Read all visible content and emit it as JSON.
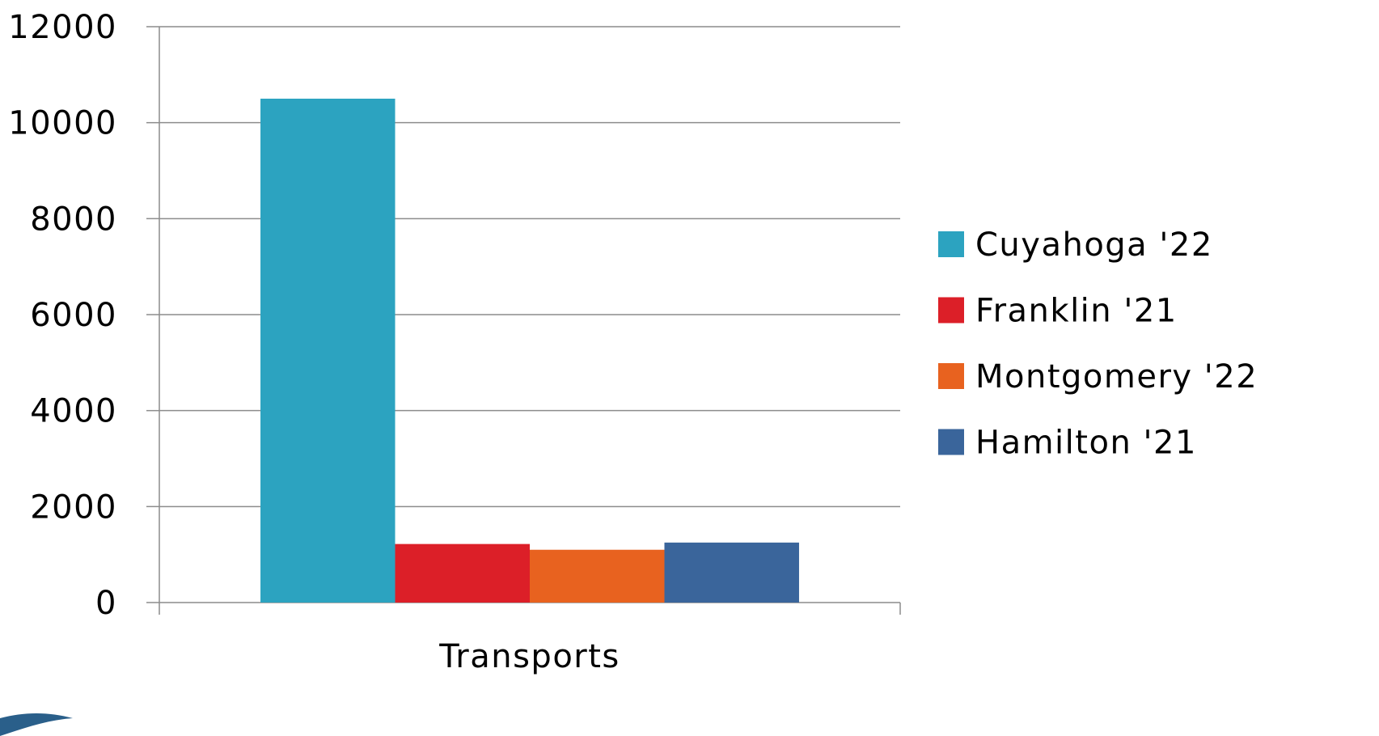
{
  "chart_data": {
    "type": "bar",
    "categories": [
      "Transports"
    ],
    "series": [
      {
        "name": "Cuyahoga '22",
        "values": [
          10500
        ],
        "color": "#2ca3c0"
      },
      {
        "name": "Franklin '21",
        "values": [
          1220
        ],
        "color": "#dc1f28"
      },
      {
        "name": "Montgomery '22",
        "values": [
          1100
        ],
        "color": "#e8621f"
      },
      {
        "name": "Hamilton '21",
        "values": [
          1250
        ],
        "color": "#3a659b"
      }
    ],
    "ylim": [
      0,
      12000
    ],
    "yticks": [
      0,
      2000,
      4000,
      6000,
      8000,
      10000,
      12000
    ],
    "ytick_labels": [
      "0",
      "2000",
      "4000",
      "6000",
      "8000",
      "10000",
      "12000"
    ],
    "grid": true,
    "legend_position": "right",
    "title": "",
    "xlabel": "",
    "ylabel": ""
  },
  "decor": {
    "corner_shape_color": "#2a5f8a"
  }
}
